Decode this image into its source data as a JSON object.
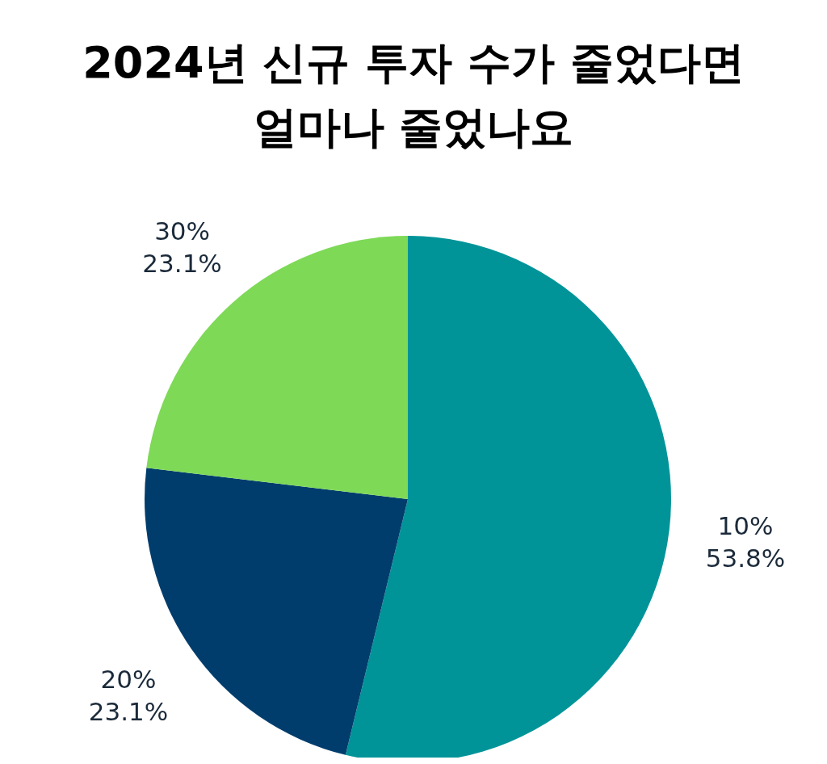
{
  "chart_data": {
    "type": "pie",
    "title": "2024년 신규 투자 수가 줄었다면 얼마나 줄었나요",
    "categories": [
      "10%",
      "20%",
      "30%"
    ],
    "values": [
      53.8,
      23.1,
      23.1
    ],
    "colors": [
      "#009499",
      "#003d6d",
      "#7ed957"
    ],
    "value_labels": [
      "53.8%",
      "23.1%",
      "23.1%"
    ]
  }
}
